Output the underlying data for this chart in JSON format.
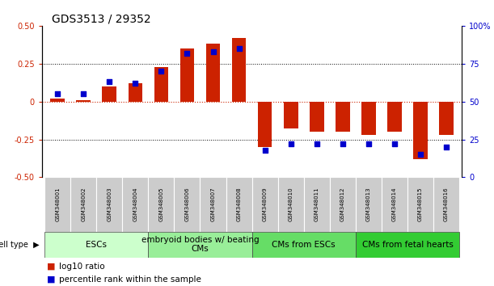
{
  "title": "GDS3513 / 29352",
  "samples": [
    "GSM348001",
    "GSM348002",
    "GSM348003",
    "GSM348004",
    "GSM348005",
    "GSM348006",
    "GSM348007",
    "GSM348008",
    "GSM348009",
    "GSM348010",
    "GSM348011",
    "GSM348012",
    "GSM348013",
    "GSM348014",
    "GSM348015",
    "GSM348016"
  ],
  "log10_ratio": [
    0.02,
    0.01,
    0.1,
    0.12,
    0.23,
    0.35,
    0.38,
    0.42,
    -0.3,
    -0.18,
    -0.2,
    -0.2,
    -0.22,
    -0.2,
    -0.38,
    -0.22
  ],
  "percentile_rank": [
    55,
    55,
    63,
    62,
    70,
    82,
    83,
    85,
    18,
    22,
    22,
    22,
    22,
    22,
    15,
    20
  ],
  "cell_types": [
    {
      "label": "ESCs",
      "start": 0,
      "end": 4,
      "color": "#ccffcc"
    },
    {
      "label": "embryoid bodies w/ beating\nCMs",
      "start": 4,
      "end": 8,
      "color": "#99ee99"
    },
    {
      "label": "CMs from ESCs",
      "start": 8,
      "end": 12,
      "color": "#66dd66"
    },
    {
      "label": "CMs from fetal hearts",
      "start": 12,
      "end": 16,
      "color": "#33cc33"
    }
  ],
  "bar_color_red": "#cc2200",
  "bar_color_blue": "#0000cc",
  "ylim_left": [
    -0.5,
    0.5
  ],
  "ylim_right": [
    0,
    100
  ],
  "yticks_left": [
    -0.5,
    -0.25,
    0.0,
    0.25,
    0.5
  ],
  "yticks_right": [
    0,
    25,
    50,
    75,
    100
  ],
  "bg_color": "#ffffff",
  "title_fontsize": 10,
  "tick_fontsize": 7,
  "sample_fontsize": 5,
  "cell_type_fontsize": 7.5,
  "legend_fontsize": 7.5
}
